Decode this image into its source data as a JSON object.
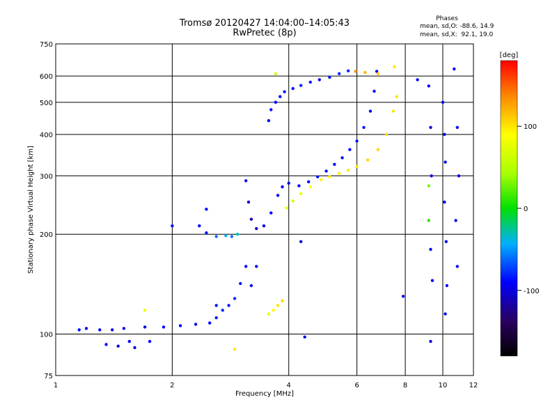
{
  "header": {
    "title": "Tromsø 20120427 14:04:00–14:05:43",
    "subtitle": "RwPretec (8p)"
  },
  "phases": {
    "heading": "Phases",
    "line1": "mean, sd,O: -88.6, 14.9",
    "line2": "mean, sd,X:  92.1, 19.0"
  },
  "chart_data": {
    "type": "scatter",
    "xlabel": "Frequency [MHz]",
    "ylabel": "Stationary phase Virtual Height [km]",
    "xscale": "log",
    "yscale": "log",
    "xlim": [
      1,
      12
    ],
    "ylim": [
      75,
      750
    ],
    "xticks": [
      1,
      2,
      4,
      6,
      8,
      10,
      12
    ],
    "yticks": [
      75,
      100,
      200,
      300,
      400,
      500,
      600,
      750
    ],
    "grid": true,
    "colorbar": {
      "label": "[deg]",
      "range": [
        -180,
        180
      ],
      "ticks": [
        -100,
        0,
        100
      ],
      "colormap": "rainbow"
    },
    "series": [
      {
        "values": [
          [
            1.15,
            103,
            -90
          ],
          [
            1.2,
            104,
            -95
          ],
          [
            1.3,
            103,
            -90
          ],
          [
            1.4,
            103,
            -95
          ],
          [
            1.5,
            104,
            -95
          ],
          [
            1.7,
            105,
            -95
          ],
          [
            1.9,
            105,
            -90
          ],
          [
            2.1,
            106,
            -90
          ],
          [
            2.3,
            107,
            -95
          ],
          [
            2.5,
            108,
            -90
          ],
          [
            2.6,
            112,
            -85
          ],
          [
            2.7,
            118,
            -80
          ],
          [
            2.8,
            122,
            -85
          ],
          [
            2.9,
            128,
            -80
          ],
          [
            3.0,
            142,
            -85
          ],
          [
            3.1,
            160,
            -95
          ],
          [
            3.2,
            140,
            -90
          ]
        ]
      },
      {
        "values": [
          [
            1.35,
            93,
            -95
          ],
          [
            1.45,
            92,
            -100
          ],
          [
            1.55,
            95,
            -95
          ],
          [
            1.6,
            91,
            -100
          ],
          [
            1.75,
            95,
            -90
          ]
        ]
      },
      {
        "values": [
          [
            2.35,
            212,
            -90
          ],
          [
            2.45,
            202,
            -85
          ],
          [
            2.6,
            197,
            -60
          ],
          [
            2.75,
            198,
            -40
          ],
          [
            2.85,
            197,
            -60
          ],
          [
            2.95,
            200,
            -30
          ]
        ]
      },
      {
        "values": [
          [
            3.1,
            290,
            -100
          ],
          [
            3.15,
            250,
            -105
          ],
          [
            3.2,
            222,
            -110
          ],
          [
            3.3,
            208,
            -105
          ],
          [
            3.45,
            212,
            -95
          ],
          [
            3.6,
            232,
            -95
          ],
          [
            3.75,
            262,
            -95
          ],
          [
            3.85,
            278,
            -90
          ],
          [
            4.0,
            285,
            -95
          ],
          [
            4.25,
            280,
            -90
          ],
          [
            4.5,
            288,
            -90
          ],
          [
            4.75,
            298,
            -85
          ],
          [
            5.0,
            310,
            -85
          ],
          [
            5.25,
            325,
            -90
          ],
          [
            5.5,
            340,
            -90
          ],
          [
            5.75,
            360,
            -90
          ],
          [
            6.0,
            382,
            -85
          ],
          [
            6.25,
            420,
            -85
          ],
          [
            6.5,
            470,
            -90
          ],
          [
            6.65,
            540,
            -90
          ],
          [
            6.75,
            620,
            -95
          ]
        ]
      },
      {
        "values": [
          [
            3.55,
            440,
            -95
          ],
          [
            3.6,
            475,
            -95
          ],
          [
            3.7,
            500,
            -90
          ],
          [
            3.8,
            520,
            -90
          ],
          [
            3.9,
            538,
            -85
          ],
          [
            4.1,
            550,
            -85
          ],
          [
            4.3,
            562,
            -80
          ],
          [
            4.55,
            575,
            -85
          ],
          [
            4.8,
            585,
            -90
          ],
          [
            5.1,
            595,
            -85
          ],
          [
            5.4,
            610,
            -80
          ],
          [
            5.7,
            622,
            -80
          ]
        ]
      },
      {
        "values": [
          [
            3.95,
            240,
            80
          ],
          [
            4.1,
            252,
            60
          ],
          [
            4.3,
            265,
            80
          ],
          [
            4.55,
            278,
            90
          ],
          [
            4.85,
            292,
            95
          ],
          [
            5.1,
            298,
            95
          ],
          [
            5.4,
            305,
            95
          ],
          [
            5.7,
            312,
            100
          ],
          [
            6.0,
            320,
            100
          ],
          [
            6.4,
            335,
            105
          ],
          [
            6.8,
            360,
            105
          ],
          [
            7.15,
            400,
            105
          ],
          [
            7.45,
            470,
            100
          ],
          [
            7.6,
            520,
            100
          ]
        ]
      },
      {
        "values": [
          [
            3.55,
            115,
            80
          ],
          [
            3.65,
            118,
            90
          ],
          [
            3.75,
            122,
            100
          ],
          [
            3.85,
            126,
            105
          ]
        ]
      },
      {
        "values": [
          [
            9.2,
            560,
            -95
          ],
          [
            9.3,
            420,
            -100
          ],
          [
            9.35,
            300,
            -95
          ],
          [
            9.2,
            220,
            10
          ],
          [
            9.3,
            180,
            -95
          ],
          [
            9.4,
            145,
            -90
          ],
          [
            9.3,
            95,
            -100
          ]
        ]
      },
      {
        "values": [
          [
            10.0,
            500,
            -90
          ],
          [
            10.1,
            400,
            -95
          ],
          [
            10.15,
            330,
            -95
          ],
          [
            10.1,
            250,
            -90
          ],
          [
            10.2,
            190,
            -95
          ],
          [
            10.25,
            140,
            -90
          ],
          [
            10.15,
            115,
            -95
          ]
        ]
      },
      {
        "values": [
          [
            10.7,
            630,
            -95
          ],
          [
            10.9,
            420,
            -90
          ],
          [
            11.0,
            300,
            -95
          ],
          [
            10.8,
            220,
            -100
          ],
          [
            10.9,
            160,
            -95
          ]
        ]
      },
      {
        "values": [
          [
            5.95,
            620,
            130
          ],
          [
            6.3,
            615,
            120
          ],
          [
            6.8,
            610,
            110
          ],
          [
            7.5,
            640,
            100
          ],
          [
            3.7,
            610,
            60
          ],
          [
            8.6,
            585,
            -95
          ],
          [
            2.45,
            238,
            -90
          ],
          [
            2.0,
            212,
            -95
          ],
          [
            4.3,
            190,
            -100
          ],
          [
            3.3,
            160,
            -95
          ],
          [
            1.7,
            118,
            80
          ],
          [
            2.9,
            90,
            100
          ],
          [
            2.6,
            122,
            -85
          ],
          [
            4.4,
            98,
            -95
          ],
          [
            7.9,
            130,
            -95
          ],
          [
            9.2,
            280,
            30
          ]
        ]
      }
    ]
  }
}
